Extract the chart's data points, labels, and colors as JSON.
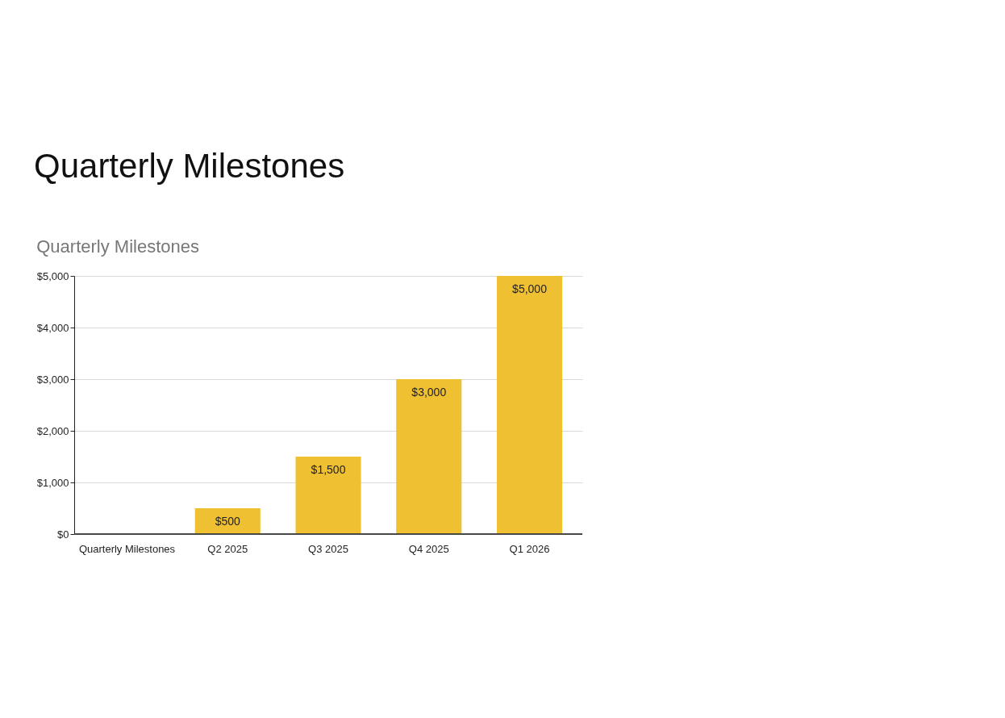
{
  "chart_data": {
    "type": "bar",
    "title": "Quarterly Milestones",
    "subtitle": "Quarterly Milestones",
    "categories": [
      "Quarterly Milestones",
      "Q2 2025",
      "Q3 2025",
      "Q4 2025",
      "Q1 2026"
    ],
    "values": [
      null,
      500,
      1500,
      3000,
      5000
    ],
    "value_labels": [
      null,
      "$500",
      "$1,500",
      "$3,000",
      "$5,000"
    ],
    "color": "#efc032",
    "ylim": [
      0,
      5000
    ],
    "yticks": [
      {
        "value": 0,
        "label": "$0"
      },
      {
        "value": 1000,
        "label": "$1,000"
      },
      {
        "value": 2000,
        "label": "$2,000"
      },
      {
        "value": 3000,
        "label": "$3,000"
      },
      {
        "value": 4000,
        "label": "$4,000"
      },
      {
        "value": 5000,
        "label": "$5,000"
      }
    ],
    "grid": "y"
  }
}
